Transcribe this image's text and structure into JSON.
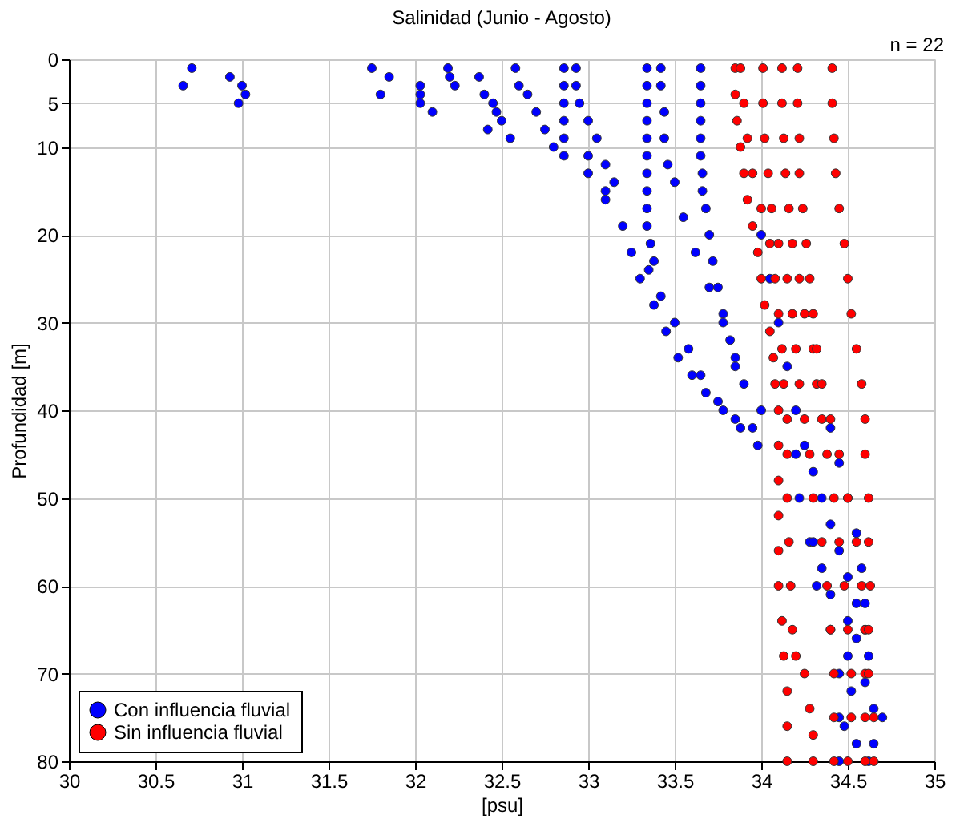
{
  "chart_data": {
    "type": "scatter",
    "title": "Salinidad (Junio - Agosto)",
    "xlabel": "[psu]",
    "ylabel": "Profundidad [m]",
    "annotations": [
      "n = 22"
    ],
    "xlim": [
      30,
      35
    ],
    "xticks": [
      30,
      30.5,
      31,
      31.5,
      32,
      32.5,
      33,
      33.5,
      34,
      34.5,
      35
    ],
    "ylim": [
      80,
      0
    ],
    "yticks": [
      0,
      5,
      10,
      20,
      30,
      40,
      50,
      60,
      70,
      80
    ],
    "grid": true,
    "legend": "bottom left",
    "marker": "circle",
    "series": [
      {
        "name": "Con influencia fluvial",
        "color": "#0000ff",
        "x": [
          30.71,
          30.66,
          30.93,
          31.0,
          31.02,
          30.98,
          31.75,
          31.85,
          31.8,
          32.03,
          32.03,
          32.03,
          32.1,
          32.19,
          32.2,
          32.23,
          32.37,
          32.4,
          32.45,
          32.47,
          32.42,
          32.5,
          32.55,
          32.58,
          32.6,
          32.65,
          32.7,
          32.75,
          32.8,
          32.86,
          32.86,
          32.86,
          32.86,
          32.86,
          32.86,
          32.93,
          32.93,
          32.95,
          33.0,
          33.05,
          33.1,
          33.15,
          33.0,
          33.0,
          33.1,
          33.34,
          33.34,
          33.34,
          33.34,
          33.34,
          33.34,
          33.34,
          33.34,
          33.34,
          33.34,
          33.36,
          33.38,
          33.42,
          33.42,
          33.44,
          33.44,
          33.46,
          33.65,
          33.65,
          33.65,
          33.65,
          33.65,
          33.65,
          33.66,
          33.66,
          33.68,
          33.7,
          33.72,
          33.75,
          33.78,
          33.82,
          33.85,
          33.1,
          33.2,
          33.25,
          33.3,
          33.38,
          33.45,
          33.52,
          33.6,
          33.68,
          33.78,
          33.88,
          33.98,
          33.35,
          33.42,
          33.5,
          33.58,
          33.65,
          33.75,
          33.85,
          33.95,
          33.5,
          33.55,
          33.62,
          33.7,
          33.78,
          33.85,
          33.9,
          34.0,
          34.25,
          34.3,
          34.35,
          34.4,
          34.45,
          34.5,
          34.55,
          34.6,
          34.62,
          34.6,
          34.65,
          34.7,
          34.65,
          34.62,
          34.2,
          34.22,
          34.28,
          34.32,
          34.4,
          34.45,
          34.45,
          34.45,
          34.4,
          34.45,
          34.5,
          34.55,
          34.58,
          34.6,
          34.55,
          34.52,
          34.55,
          34.3,
          34.35,
          34.4,
          34.5,
          34.5,
          34.48,
          34.0,
          34.05,
          34.1,
          34.15,
          34.2
        ],
        "values": [
          1,
          3,
          2,
          3,
          4,
          5,
          1,
          2,
          4,
          3,
          4,
          5,
          6,
          1,
          2,
          3,
          2,
          4,
          5,
          6,
          8,
          7,
          9,
          1,
          3,
          4,
          6,
          8,
          10,
          1,
          3,
          5,
          7,
          9,
          11,
          1,
          3,
          5,
          7,
          9,
          12,
          14,
          11,
          13,
          15,
          1,
          3,
          5,
          7,
          9,
          11,
          13,
          15,
          17,
          19,
          21,
          23,
          1,
          3,
          6,
          9,
          12,
          1,
          3,
          5,
          7,
          9,
          11,
          13,
          15,
          17,
          20,
          23,
          26,
          29,
          32,
          35,
          16,
          19,
          22,
          25,
          28,
          31,
          34,
          36,
          38,
          40,
          42,
          44,
          24,
          27,
          30,
          33,
          36,
          39,
          41,
          42,
          14,
          18,
          22,
          26,
          30,
          34,
          37,
          40,
          44,
          47,
          50,
          53,
          56,
          59,
          62,
          65,
          68,
          71,
          74,
          75,
          78,
          80,
          45,
          50,
          55,
          60,
          65,
          70,
          75,
          80,
          42,
          46,
          50,
          54,
          58,
          62,
          66,
          72,
          78,
          55,
          58,
          61,
          64,
          68,
          76,
          20,
          25,
          30,
          35,
          40
        ]
      },
      {
        "name": "Sin influencia fluvial",
        "color": "#ff0000",
        "x": [
          33.85,
          33.85,
          33.86,
          33.88,
          33.9,
          33.92,
          33.95,
          33.98,
          34.0,
          34.02,
          34.05,
          34.07,
          34.08,
          34.1,
          34.1,
          34.1,
          34.1,
          34.1,
          34.1,
          34.12,
          34.13,
          34.15,
          34.15,
          34.15,
          33.88,
          33.9,
          33.92,
          33.95,
          34.0,
          34.05,
          34.08,
          34.1,
          34.12,
          34.13,
          34.15,
          34.15,
          34.15,
          34.16,
          34.17,
          34.18,
          34.2,
          34.25,
          34.28,
          34.3,
          34.3,
          34.01,
          34.01,
          34.02,
          34.04,
          34.06,
          34.1,
          34.15,
          34.18,
          34.2,
          34.22,
          34.25,
          34.28,
          34.3,
          34.35,
          34.38,
          34.4,
          34.42,
          34.42,
          34.42,
          34.12,
          34.12,
          34.13,
          34.14,
          34.16,
          34.18,
          34.22,
          34.25,
          34.3,
          34.32,
          34.35,
          34.38,
          34.42,
          34.45,
          34.48,
          34.5,
          34.52,
          34.52,
          34.5,
          34.21,
          34.21,
          34.22,
          34.22,
          34.24,
          34.26,
          34.28,
          34.3,
          34.32,
          34.35,
          34.4,
          34.45,
          34.5,
          34.55,
          34.58,
          34.6,
          34.6,
          34.6,
          34.6,
          34.41,
          34.41,
          34.42,
          34.43,
          34.45,
          34.48,
          34.5,
          34.52,
          34.55,
          34.58,
          34.6,
          34.6,
          34.62,
          34.62,
          34.63,
          34.62,
          34.62,
          34.65,
          34.65
        ],
        "values": [
          1,
          4,
          7,
          10,
          13,
          16,
          19,
          22,
          25,
          28,
          31,
          34,
          37,
          40,
          44,
          48,
          52,
          56,
          60,
          64,
          68,
          72,
          76,
          80,
          1,
          5,
          9,
          13,
          17,
          21,
          25,
          29,
          33,
          37,
          41,
          45,
          50,
          55,
          60,
          65,
          68,
          70,
          74,
          77,
          80,
          1,
          5,
          9,
          13,
          17,
          21,
          25,
          29,
          33,
          37,
          41,
          45,
          50,
          55,
          60,
          65,
          70,
          75,
          80,
          1,
          5,
          9,
          13,
          17,
          21,
          25,
          29,
          33,
          37,
          41,
          45,
          50,
          55,
          60,
          65,
          70,
          75,
          80,
          1,
          5,
          9,
          13,
          17,
          21,
          25,
          29,
          33,
          37,
          41,
          45,
          50,
          55,
          60,
          65,
          70,
          75,
          80,
          1,
          5,
          9,
          13,
          17,
          21,
          25,
          29,
          33,
          37,
          41,
          45,
          50,
          55,
          60,
          65,
          70,
          75,
          80
        ]
      }
    ]
  }
}
